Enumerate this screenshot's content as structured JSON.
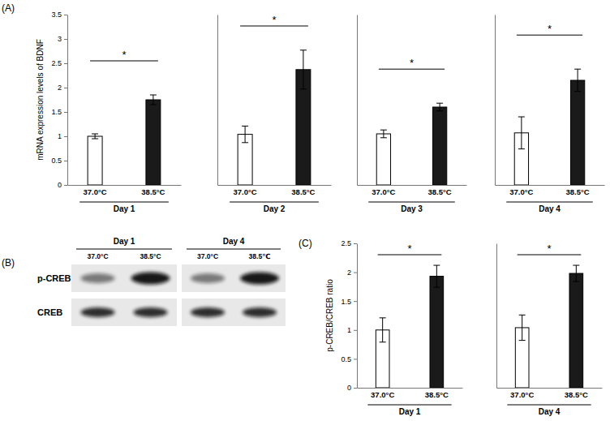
{
  "panel_labels": [
    "(A)",
    "(B)",
    "(C)"
  ],
  "chart_data": [
    {
      "type": "bar",
      "ylabel": "mRNA expression levels of BDNF",
      "xlabel": "Day 1",
      "categories": [
        "37.0°C",
        "38.5°C"
      ],
      "values": [
        1.0,
        1.75
      ],
      "errors": [
        0.05,
        0.1
      ],
      "colors": [
        "#ffffff",
        "#1a1a1a"
      ],
      "ylim": [
        0,
        3.5
      ],
      "yticks": [
        0,
        0.5,
        1,
        1.5,
        2,
        2.5,
        3,
        3.5
      ],
      "annotations": [
        "*"
      ]
    },
    {
      "type": "bar",
      "xlabel": "Day 2",
      "categories": [
        "37.0°C",
        "38.5°C"
      ],
      "values": [
        1.04,
        2.37
      ],
      "errors": [
        0.17,
        0.4
      ],
      "colors": [
        "#ffffff",
        "#1a1a1a"
      ],
      "ylim": [
        0,
        3.5
      ],
      "tick_labels": "x",
      "annotations": [
        "*"
      ]
    },
    {
      "type": "bar",
      "xlabel": "Day 3",
      "categories": [
        "37.0°C",
        "38.5°C"
      ],
      "values": [
        1.05,
        1.6
      ],
      "errors": [
        0.08,
        0.08
      ],
      "colors": [
        "#ffffff",
        "#1a1a1a"
      ],
      "ylim": [
        0,
        3.5
      ],
      "tick_labels": "x",
      "annotations": [
        "*"
      ]
    },
    {
      "type": "bar",
      "xlabel": "Day 4",
      "categories": [
        "37.0°C",
        "38.5°C"
      ],
      "values": [
        1.07,
        2.15
      ],
      "errors": [
        0.33,
        0.23
      ],
      "colors": [
        "#ffffff",
        "#1a1a1a"
      ],
      "ylim": [
        0,
        3.5
      ],
      "tick_labels": "x",
      "annotations": [
        "*"
      ]
    },
    {
      "type": "bar",
      "ylabel": "p-CREB/CREB ratio",
      "xlabel": "Day 1",
      "categories": [
        "37.0°C",
        "38.5°C"
      ],
      "values": [
        1.0,
        1.93
      ],
      "errors": [
        0.21,
        0.19
      ],
      "colors": [
        "#ffffff",
        "#1a1a1a"
      ],
      "ylim": [
        0,
        2.5
      ],
      "yticks": [
        0,
        0.5,
        1,
        1.5,
        2,
        2.5
      ],
      "annotations": [
        "*"
      ]
    },
    {
      "type": "bar",
      "xlabel": "Day 4",
      "categories": [
        "37.0°C",
        "38.5°C"
      ],
      "values": [
        1.04,
        1.98
      ],
      "errors": [
        0.22,
        0.14
      ],
      "colors": [
        "#ffffff",
        "#1a1a1a"
      ],
      "ylim": [
        0,
        2.5
      ],
      "tick_labels": "x",
      "annotations": [
        "*"
      ]
    }
  ],
  "blot": {
    "groups": [
      {
        "label": "Day 1",
        "lanes": [
          "37.0°C",
          "38.5°C"
        ]
      },
      {
        "label": "Day 4",
        "lanes": [
          "37.0°C",
          "38.5℃"
        ]
      }
    ],
    "rows": [
      "p-CREB",
      "CREB"
    ]
  }
}
